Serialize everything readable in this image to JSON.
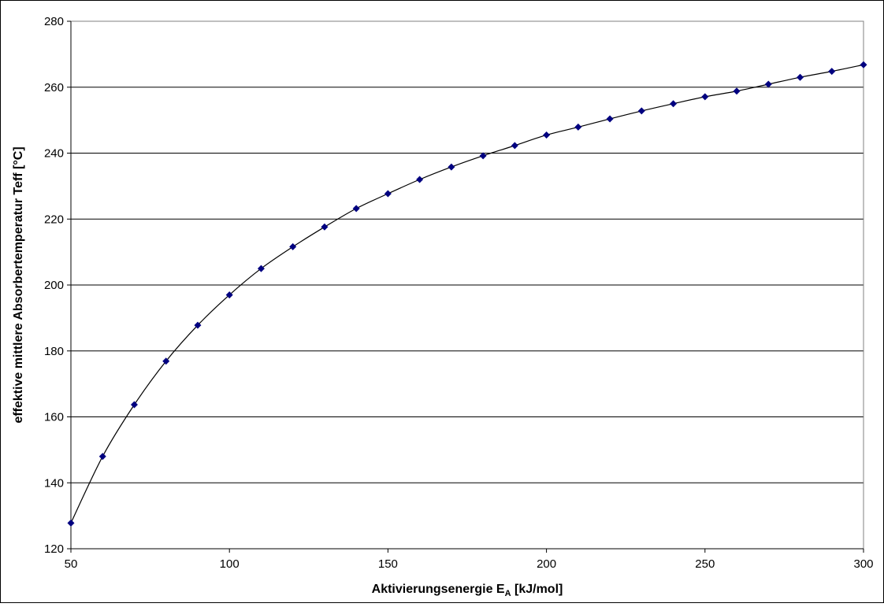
{
  "chart_data": {
    "type": "scatter",
    "xlabel": {
      "main": "Aktivierungsenergie E",
      "sub": "A",
      "unit": " [kJ/mol]"
    },
    "ylabel": "effektive mittlere Absorbertemperatur Teff [°C]",
    "xlim": [
      50,
      300
    ],
    "ylim": [
      120,
      280
    ],
    "xticks": [
      50,
      100,
      150,
      200,
      250,
      300
    ],
    "yticks": [
      120,
      140,
      160,
      180,
      200,
      220,
      240,
      260,
      280
    ],
    "grid": {
      "horizontal": true,
      "vertical": false
    },
    "legend": "none",
    "trendline": "smooth curve through points",
    "colors": {
      "marker": "#000080",
      "line": "#000000",
      "grid": "#000000"
    },
    "series": [
      {
        "x": [
          50,
          60,
          70,
          80,
          90,
          100,
          110,
          120,
          130,
          140,
          150,
          160,
          170,
          180,
          190,
          200,
          210,
          220,
          230,
          240,
          250,
          260,
          270,
          280,
          290,
          300
        ],
        "y": [
          127.8,
          148.0,
          163.7,
          176.9,
          187.8,
          197.0,
          205.0,
          211.6,
          217.6,
          223.2,
          227.7,
          232.0,
          235.8,
          239.2,
          242.3,
          245.5,
          247.9,
          250.4,
          252.8,
          255.0,
          257.1,
          258.8,
          260.9,
          263.0,
          264.8,
          266.8
        ]
      }
    ]
  }
}
